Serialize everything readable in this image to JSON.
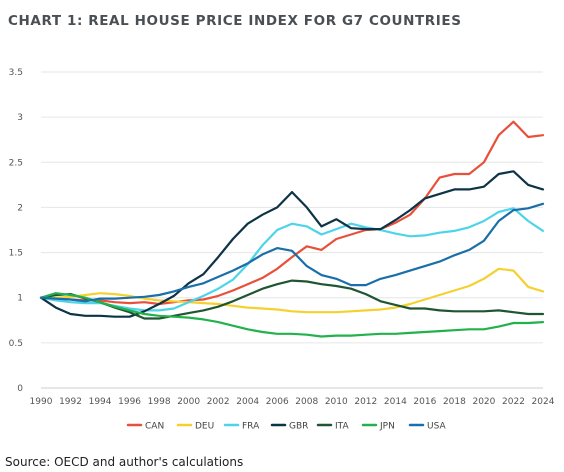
{
  "title": "CHART 1: REAL HOUSE PRICE INDEX FOR G7 COUNTRIES",
  "source": "Source: OECD and author's calculations",
  "chart_data": {
    "type": "line",
    "title": "CHART 1: REAL HOUSE PRICE INDEX FOR G7 COUNTRIES",
    "xlabel": "",
    "ylabel": "",
    "xlim": [
      1990,
      2024
    ],
    "ylim": [
      0,
      3.5
    ],
    "x_ticks": [
      "1990",
      "1992",
      "1994",
      "1996",
      "1998",
      "2000",
      "2002",
      "2004",
      "2006",
      "2008",
      "2010",
      "2012",
      "2014",
      "2016",
      "2018",
      "2020",
      "2022",
      "2024"
    ],
    "y_ticks": [
      "0",
      "0.5",
      "1",
      "1.5",
      "2",
      "2.5",
      "3",
      "3.5"
    ],
    "grid": "horizontal",
    "legend_position": "bottom",
    "x": [
      1990,
      1991,
      1992,
      1993,
      1994,
      1995,
      1996,
      1997,
      1998,
      1999,
      2000,
      2001,
      2002,
      2003,
      2004,
      2005,
      2006,
      2007,
      2008,
      2009,
      2010,
      2011,
      2012,
      2013,
      2014,
      2015,
      2016,
      2017,
      2018,
      2019,
      2020,
      2021,
      2022,
      2023,
      2024
    ],
    "series": [
      {
        "name": "CAN",
        "color": "#e8503a",
        "values": [
          1.0,
          0.99,
          0.98,
          0.97,
          0.97,
          0.95,
          0.94,
          0.95,
          0.93,
          0.95,
          0.97,
          0.98,
          1.02,
          1.08,
          1.15,
          1.22,
          1.32,
          1.45,
          1.57,
          1.53,
          1.65,
          1.7,
          1.75,
          1.76,
          1.83,
          1.92,
          2.1,
          2.33,
          2.37,
          2.37,
          2.5,
          2.8,
          2.95,
          2.78,
          2.8
        ]
      },
      {
        "name": "DEU",
        "color": "#f5d130",
        "values": [
          1.0,
          1.0,
          1.01,
          1.03,
          1.05,
          1.04,
          1.02,
          0.99,
          0.97,
          0.96,
          0.95,
          0.94,
          0.93,
          0.91,
          0.89,
          0.88,
          0.87,
          0.85,
          0.84,
          0.84,
          0.84,
          0.85,
          0.86,
          0.87,
          0.89,
          0.93,
          0.98,
          1.03,
          1.08,
          1.13,
          1.21,
          1.32,
          1.3,
          1.12,
          1.07
        ]
      },
      {
        "name": "FRA",
        "color": "#4ed4e8",
        "values": [
          1.0,
          0.97,
          0.95,
          0.94,
          0.94,
          0.91,
          0.88,
          0.86,
          0.86,
          0.88,
          0.95,
          1.02,
          1.1,
          1.2,
          1.37,
          1.58,
          1.75,
          1.82,
          1.79,
          1.7,
          1.76,
          1.82,
          1.78,
          1.75,
          1.71,
          1.68,
          1.69,
          1.72,
          1.74,
          1.78,
          1.85,
          1.95,
          1.99,
          1.85,
          1.74
        ]
      },
      {
        "name": "GBR",
        "color": "#0d3347",
        "values": [
          1.0,
          0.89,
          0.82,
          0.8,
          0.8,
          0.79,
          0.79,
          0.85,
          0.93,
          1.02,
          1.16,
          1.26,
          1.45,
          1.65,
          1.82,
          1.92,
          2.0,
          2.17,
          2.0,
          1.79,
          1.87,
          1.77,
          1.76,
          1.76,
          1.86,
          1.97,
          2.1,
          2.15,
          2.2,
          2.2,
          2.23,
          2.37,
          2.4,
          2.25,
          2.2
        ]
      },
      {
        "name": "ITA",
        "color": "#1f5631",
        "values": [
          1.0,
          1.03,
          1.04,
          0.99,
          0.95,
          0.89,
          0.84,
          0.77,
          0.77,
          0.8,
          0.83,
          0.86,
          0.9,
          0.96,
          1.03,
          1.1,
          1.15,
          1.19,
          1.18,
          1.15,
          1.13,
          1.1,
          1.04,
          0.96,
          0.92,
          0.88,
          0.88,
          0.86,
          0.85,
          0.85,
          0.85,
          0.86,
          0.84,
          0.82,
          0.82
        ]
      },
      {
        "name": "JPN",
        "color": "#22b14c",
        "values": [
          1.0,
          1.05,
          1.03,
          1.0,
          0.95,
          0.9,
          0.86,
          0.82,
          0.8,
          0.79,
          0.78,
          0.76,
          0.73,
          0.69,
          0.65,
          0.62,
          0.6,
          0.6,
          0.59,
          0.57,
          0.58,
          0.58,
          0.59,
          0.6,
          0.6,
          0.61,
          0.62,
          0.63,
          0.64,
          0.65,
          0.65,
          0.68,
          0.72,
          0.72,
          0.73
        ]
      },
      {
        "name": "USA",
        "color": "#1a6fa8",
        "values": [
          1.0,
          0.99,
          0.98,
          0.96,
          0.99,
          0.99,
          1.0,
          1.01,
          1.03,
          1.07,
          1.12,
          1.16,
          1.23,
          1.3,
          1.38,
          1.48,
          1.55,
          1.52,
          1.35,
          1.25,
          1.21,
          1.14,
          1.14,
          1.21,
          1.25,
          1.3,
          1.35,
          1.4,
          1.47,
          1.53,
          1.63,
          1.85,
          1.97,
          1.99,
          2.04
        ]
      }
    ]
  }
}
